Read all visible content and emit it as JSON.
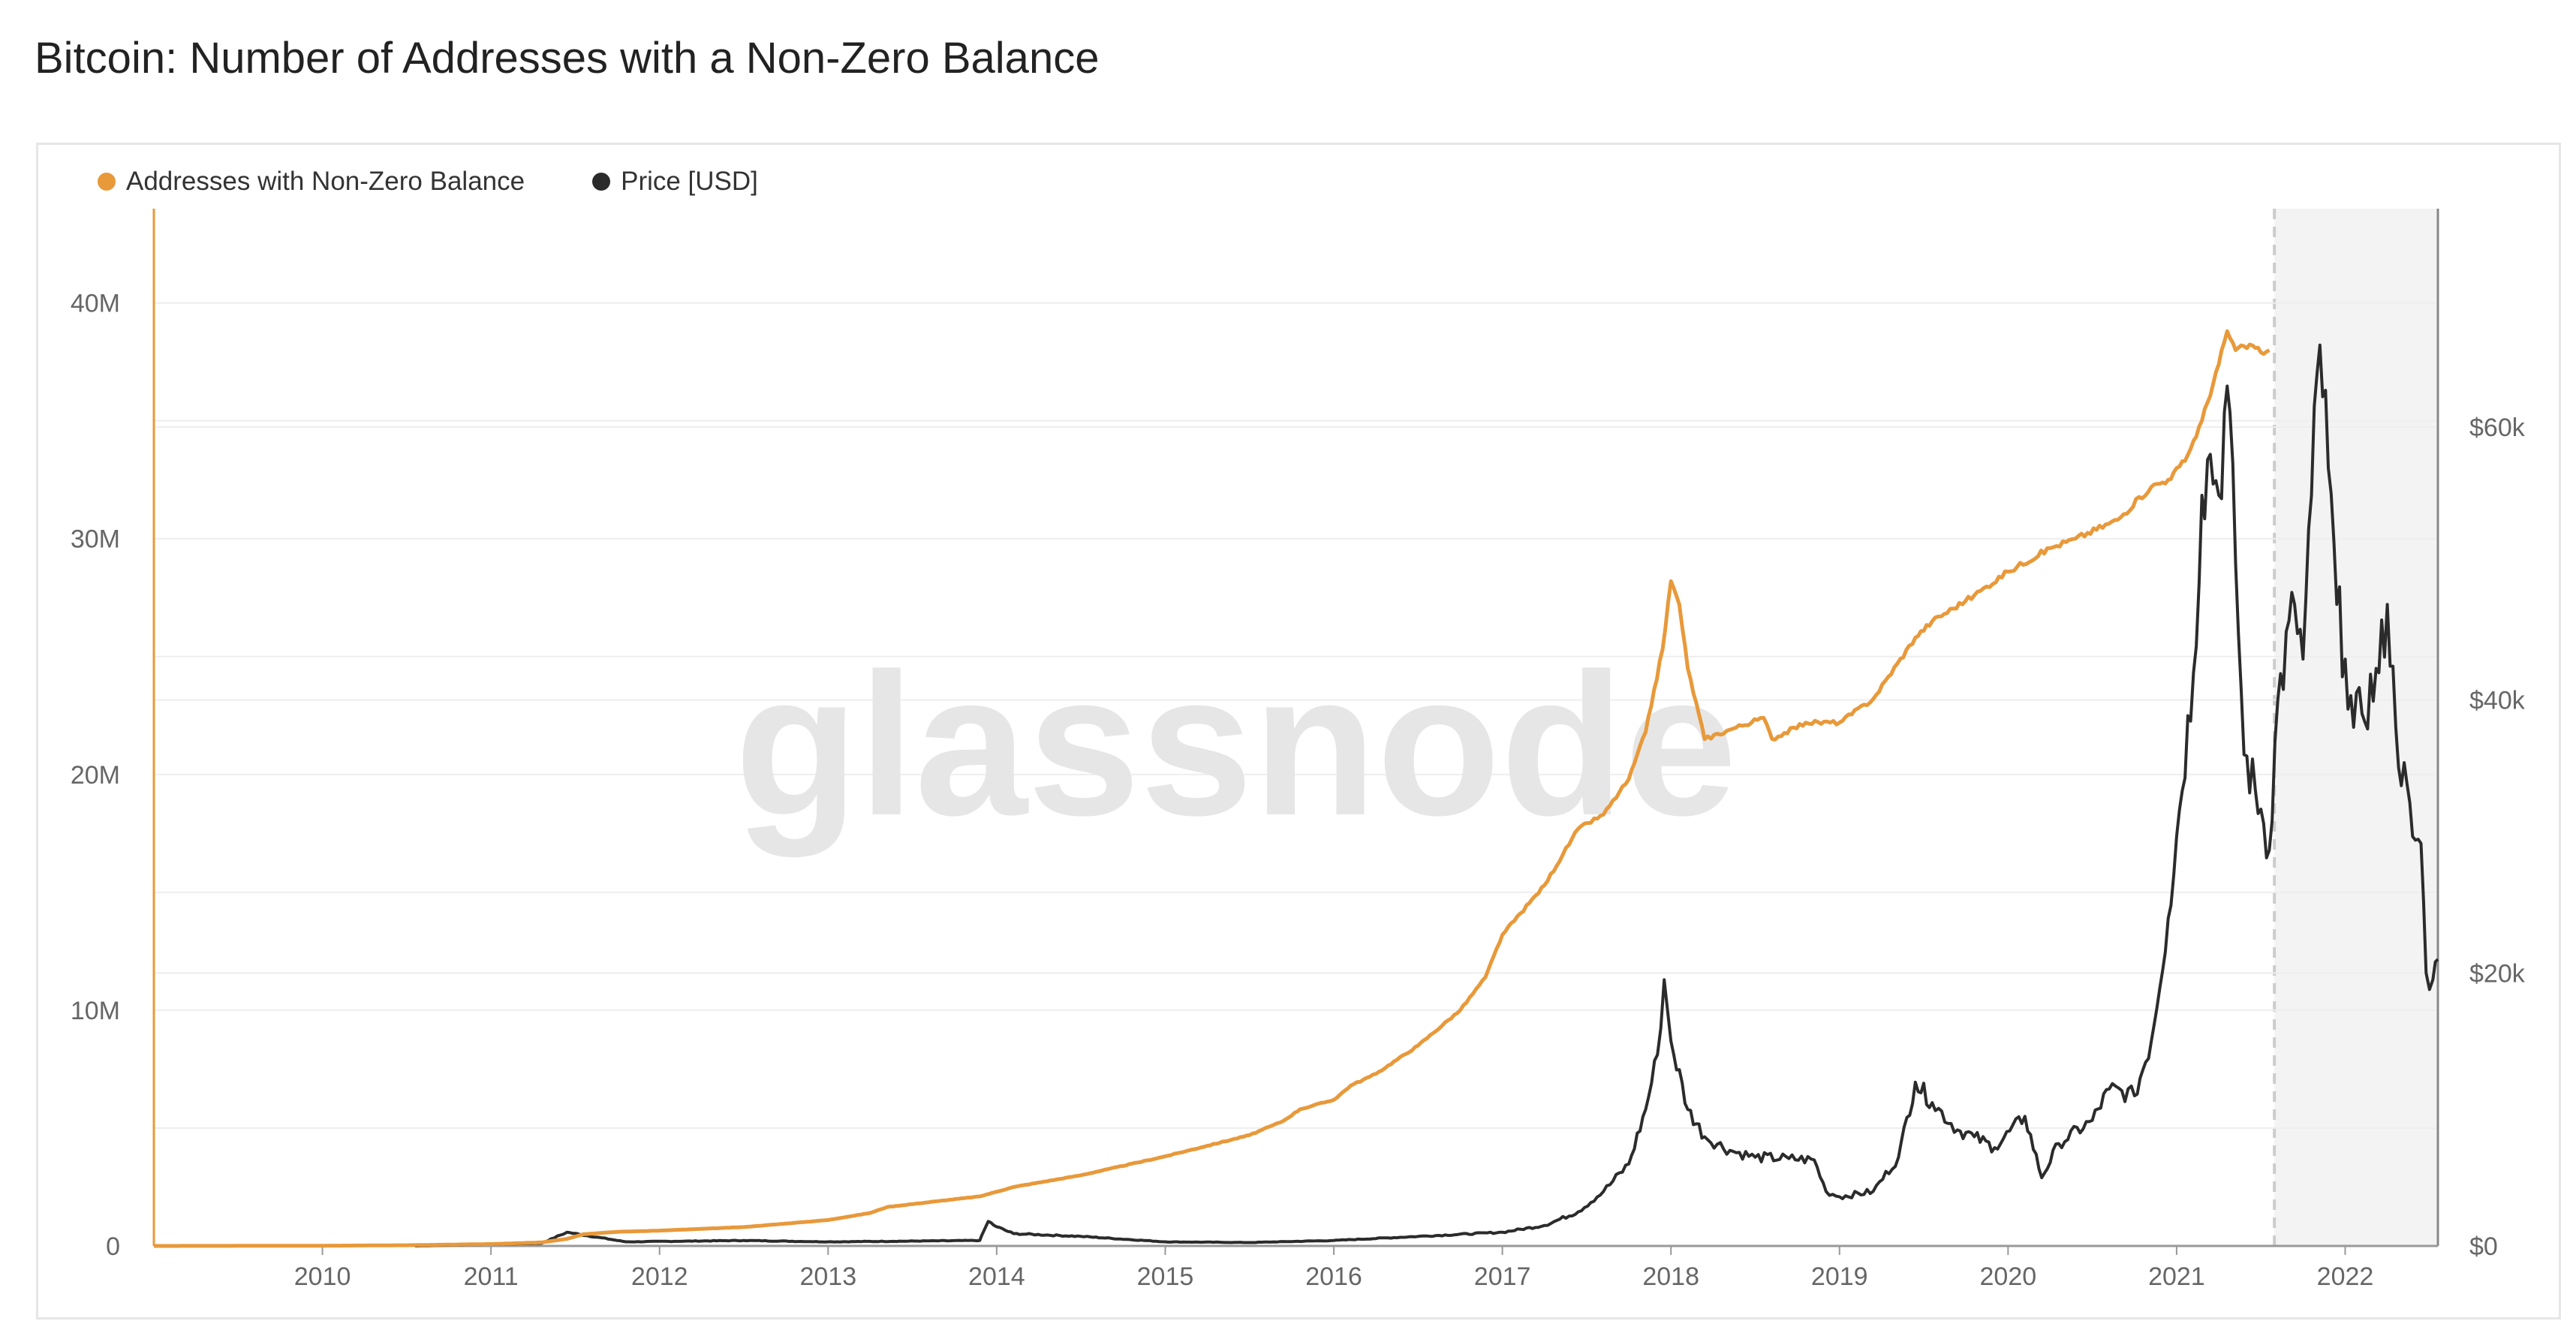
{
  "page": {
    "title": "Bitcoin: Number of Addresses with a Non-Zero Balance",
    "watermark": "glassnode"
  },
  "colors": {
    "addresses": "#E8993A",
    "price": "#2B2B2B",
    "grid": "#EEEEEE",
    "axis_text": "#666666"
  },
  "chart_data": {
    "type": "line",
    "title": "Bitcoin: Number of Addresses with a Non-Zero Balance",
    "legend_position": "top-left",
    "x_range": [
      2009.0,
      2022.55
    ],
    "x_ticks": [
      {
        "value": 2010,
        "label": "2010"
      },
      {
        "value": 2011,
        "label": "2011"
      },
      {
        "value": 2012,
        "label": "2012"
      },
      {
        "value": 2013,
        "label": "2013"
      },
      {
        "value": 2014,
        "label": "2014"
      },
      {
        "value": 2015,
        "label": "2015"
      },
      {
        "value": 2016,
        "label": "2016"
      },
      {
        "value": 2017,
        "label": "2017"
      },
      {
        "value": 2018,
        "label": "2018"
      },
      {
        "value": 2019,
        "label": "2019"
      },
      {
        "value": 2020,
        "label": "2020"
      },
      {
        "value": 2021,
        "label": "2021"
      },
      {
        "value": 2022,
        "label": "2022"
      }
    ],
    "y_left": {
      "range": [
        0,
        44000000
      ],
      "ticks": [
        {
          "value": 0,
          "label": "0"
        },
        {
          "value": 10000000,
          "label": "10M"
        },
        {
          "value": 20000000,
          "label": "20M"
        },
        {
          "value": 30000000,
          "label": "30M"
        },
        {
          "value": 40000000,
          "label": "40M"
        }
      ]
    },
    "y_right": {
      "range": [
        0,
        76000
      ],
      "ticks": [
        {
          "value": 0,
          "label": "$0"
        },
        {
          "value": 20000,
          "label": "$20k"
        },
        {
          "value": 40000,
          "label": "$40k"
        },
        {
          "value": 60000,
          "label": "$60k"
        }
      ]
    },
    "highlight_start": 2021.58,
    "series": [
      {
        "name": "Addresses with Non-Zero Balance",
        "axis": "left",
        "points": [
          [
            2009.0,
            0
          ],
          [
            2010.0,
            10000
          ],
          [
            2010.5,
            30000
          ],
          [
            2011.0,
            80000
          ],
          [
            2011.3,
            150000
          ],
          [
            2011.45,
            300000
          ],
          [
            2011.55,
            500000
          ],
          [
            2011.75,
            600000
          ],
          [
            2012.0,
            650000
          ],
          [
            2012.5,
            800000
          ],
          [
            2013.0,
            1100000
          ],
          [
            2013.25,
            1400000
          ],
          [
            2013.35,
            1650000
          ],
          [
            2013.65,
            1900000
          ],
          [
            2013.9,
            2100000
          ],
          [
            2014.1,
            2500000
          ],
          [
            2014.5,
            3000000
          ],
          [
            2015.0,
            3800000
          ],
          [
            2015.5,
            4700000
          ],
          [
            2015.7,
            5300000
          ],
          [
            2015.8,
            5800000
          ],
          [
            2016.0,
            6200000
          ],
          [
            2016.1,
            6800000
          ],
          [
            2016.25,
            7300000
          ],
          [
            2016.5,
            8500000
          ],
          [
            2016.75,
            10000000
          ],
          [
            2016.9,
            11400000
          ],
          [
            2017.0,
            13200000
          ],
          [
            2017.25,
            15300000
          ],
          [
            2017.45,
            17700000
          ],
          [
            2017.6,
            18300000
          ],
          [
            2017.75,
            19800000
          ],
          [
            2017.85,
            21800000
          ],
          [
            2017.95,
            25300000
          ],
          [
            2018.0,
            28200000
          ],
          [
            2018.05,
            27200000
          ],
          [
            2018.1,
            24500000
          ],
          [
            2018.2,
            21500000
          ],
          [
            2018.35,
            21900000
          ],
          [
            2018.55,
            22400000
          ],
          [
            2018.6,
            21500000
          ],
          [
            2018.8,
            22200000
          ],
          [
            2019.0,
            22200000
          ],
          [
            2019.2,
            23200000
          ],
          [
            2019.45,
            25800000
          ],
          [
            2019.55,
            26500000
          ],
          [
            2019.8,
            27600000
          ],
          [
            2020.0,
            28600000
          ],
          [
            2020.25,
            29600000
          ],
          [
            2020.4,
            30000000
          ],
          [
            2020.65,
            30800000
          ],
          [
            2020.85,
            32200000
          ],
          [
            2020.95,
            32500000
          ],
          [
            2021.05,
            33300000
          ],
          [
            2021.15,
            35000000
          ],
          [
            2021.25,
            37400000
          ],
          [
            2021.3,
            38800000
          ],
          [
            2021.35,
            38000000
          ],
          [
            2021.45,
            38200000
          ],
          [
            2021.5,
            37900000
          ],
          [
            2021.55,
            38000000
          ]
        ]
      },
      {
        "name": "Price [USD]",
        "axis": "right",
        "points": [
          [
            2010.55,
            0
          ],
          [
            2011.3,
            200
          ],
          [
            2011.45,
            1000
          ],
          [
            2011.8,
            300
          ],
          [
            2012.5,
            400
          ],
          [
            2013.0,
            300
          ],
          [
            2013.9,
            400
          ],
          [
            2013.92,
            1000
          ],
          [
            2013.95,
            1800
          ],
          [
            2014.0,
            1400
          ],
          [
            2014.1,
            900
          ],
          [
            2014.5,
            700
          ],
          [
            2015.0,
            300
          ],
          [
            2015.5,
            250
          ],
          [
            2016.0,
            400
          ],
          [
            2016.5,
            700
          ],
          [
            2017.0,
            1000
          ],
          [
            2017.25,
            1500
          ],
          [
            2017.45,
            2500
          ],
          [
            2017.6,
            4000
          ],
          [
            2017.75,
            6000
          ],
          [
            2017.85,
            10000
          ],
          [
            2017.92,
            14000
          ],
          [
            2017.96,
            19500
          ],
          [
            2018.0,
            15000
          ],
          [
            2018.1,
            10000
          ],
          [
            2018.2,
            8000
          ],
          [
            2018.35,
            7000
          ],
          [
            2018.5,
            6500
          ],
          [
            2018.7,
            6400
          ],
          [
            2018.85,
            6300
          ],
          [
            2018.92,
            4000
          ],
          [
            2019.0,
            3600
          ],
          [
            2019.2,
            4000
          ],
          [
            2019.35,
            6500
          ],
          [
            2019.45,
            12000
          ],
          [
            2019.55,
            10500
          ],
          [
            2019.7,
            8500
          ],
          [
            2019.8,
            8000
          ],
          [
            2019.92,
            7200
          ],
          [
            2020.1,
            9500
          ],
          [
            2020.2,
            5000
          ],
          [
            2020.3,
            7500
          ],
          [
            2020.5,
            9200
          ],
          [
            2020.6,
            11500
          ],
          [
            2020.75,
            11000
          ],
          [
            2020.85,
            15000
          ],
          [
            2020.95,
            24000
          ],
          [
            2021.0,
            30000
          ],
          [
            2021.1,
            42000
          ],
          [
            2021.15,
            55000
          ],
          [
            2021.2,
            58000
          ],
          [
            2021.25,
            55000
          ],
          [
            2021.3,
            63000
          ],
          [
            2021.35,
            50000
          ],
          [
            2021.4,
            36000
          ],
          [
            2021.5,
            32000
          ],
          [
            2021.55,
            29000
          ],
          [
            2021.6,
            40000
          ],
          [
            2021.7,
            47000
          ],
          [
            2021.75,
            43000
          ],
          [
            2021.8,
            55000
          ],
          [
            2021.85,
            66000
          ],
          [
            2021.9,
            57000
          ],
          [
            2021.95,
            47000
          ],
          [
            2022.0,
            43000
          ],
          [
            2022.05,
            38000
          ],
          [
            2022.1,
            39000
          ],
          [
            2022.2,
            42000
          ],
          [
            2022.25,
            47000
          ],
          [
            2022.3,
            38000
          ],
          [
            2022.4,
            30000
          ],
          [
            2022.45,
            29500
          ],
          [
            2022.48,
            20000
          ],
          [
            2022.52,
            19500
          ],
          [
            2022.55,
            21000
          ]
        ]
      }
    ]
  },
  "legend": [
    {
      "label": "Addresses with Non-Zero Balance"
    },
    {
      "label": "Price [USD]"
    }
  ]
}
